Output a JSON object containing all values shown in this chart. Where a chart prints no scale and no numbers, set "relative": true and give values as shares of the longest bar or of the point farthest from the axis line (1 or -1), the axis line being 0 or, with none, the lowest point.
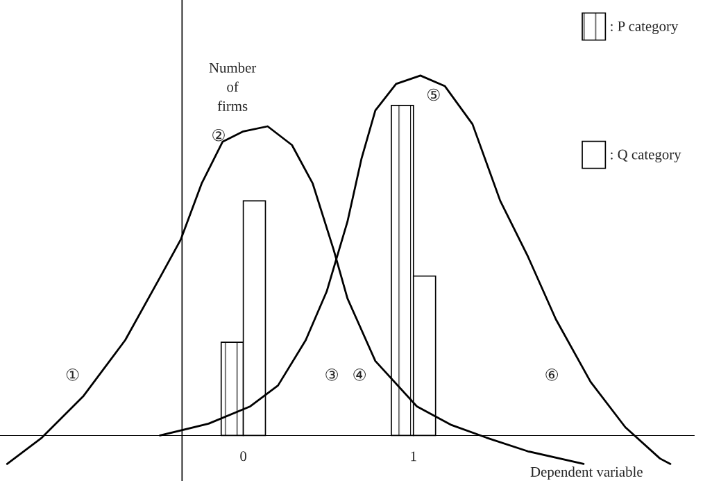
{
  "chart_data": {
    "type": "bar",
    "relative": true,
    "xlabel": "Dependent variable",
    "ylabel": "Number\nof\nfirms",
    "x": [
      0,
      1
    ],
    "xlim": [
      -1.43,
      2.65
    ],
    "xticks": [
      0,
      1
    ],
    "legend": "top right",
    "grid": false,
    "ref_lines": [
      {
        "axis": "x",
        "value": -0.36
      }
    ],
    "series": [
      {
        "name": ": P category",
        "color": "#000000",
        "values": [
          0.259,
          0.917
        ]
      },
      {
        "name": ": Q category",
        "color": "#ffffff",
        "values": [
          0.652,
          0.443
        ]
      },
      {
        "type": "line",
        "color": "#000000",
        "x": [
          -1.388,
          -1.184,
          -0.939,
          -0.694,
          -0.49,
          -0.367,
          -0.245,
          -0.122,
          0,
          0.143,
          0.286,
          0.408,
          0.531,
          0.612,
          0.776,
          1.02,
          1.224,
          1.429,
          1.673,
          2.0
        ],
        "values": [
          -0.079,
          -0.006,
          0.11,
          0.265,
          0.439,
          0.545,
          0.7,
          0.816,
          0.845,
          0.859,
          0.807,
          0.7,
          0.516,
          0.381,
          0.207,
          0.081,
          0.029,
          -0.006,
          -0.044,
          -0.079
        ]
      },
      {
        "type": "line",
        "color": "#000000",
        "x": [
          -0.49,
          -0.204,
          0.041,
          0.204,
          0.367,
          0.49,
          0.612,
          0.694,
          0.776,
          0.898,
          1.041,
          1.184,
          1.347,
          1.51,
          1.673,
          1.837,
          2.041,
          2.245,
          2.449,
          2.51
        ],
        "values": [
          0,
          0.033,
          0.081,
          0.139,
          0.265,
          0.4,
          0.594,
          0.768,
          0.903,
          0.977,
          1,
          0.971,
          0.865,
          0.652,
          0.497,
          0.323,
          0.149,
          0.023,
          -0.064,
          -0.079
        ]
      }
    ],
    "annotations": [
      "①",
      "②",
      "③",
      "④",
      "⑤",
      "⑥"
    ]
  }
}
